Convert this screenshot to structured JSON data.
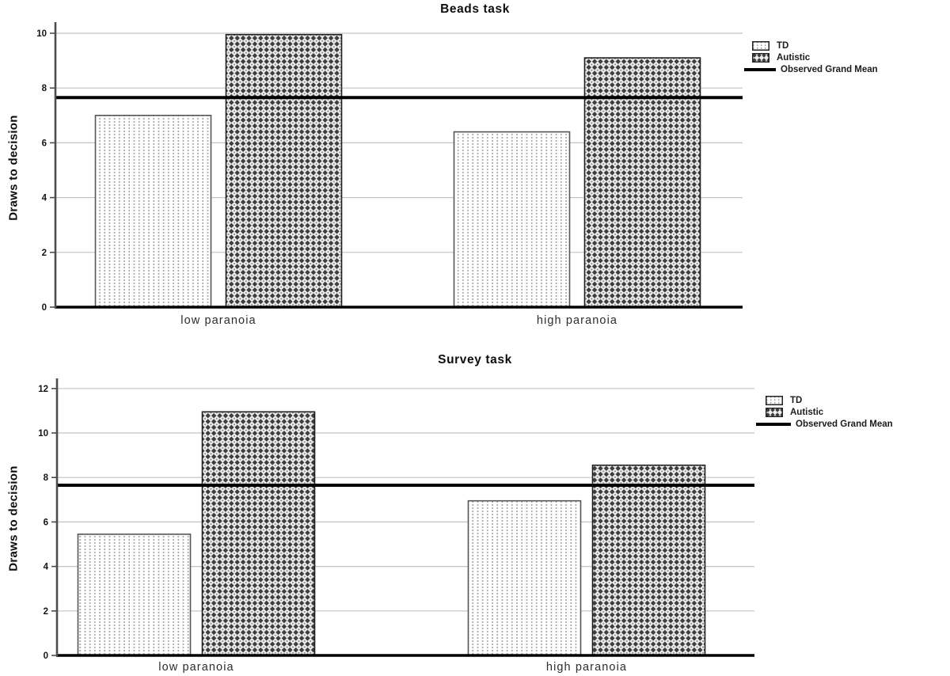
{
  "figure": {
    "background": "#ffffff",
    "text_color": "#000000",
    "gridline_color": "#c2c2c2"
  },
  "chart_data": [
    {
      "type": "bar",
      "title": "Beads task",
      "ylabel": "Draws to decision",
      "xlabel": "",
      "categories": [
        "low paranoia",
        "high paranoia"
      ],
      "series": [
        {
          "name": "TD",
          "pattern": "vertical-dots",
          "values": [
            7.0,
            6.4
          ]
        },
        {
          "name": "Autistic",
          "pattern": "diamond-check",
          "values": [
            9.95,
            9.1
          ]
        }
      ],
      "grand_mean": 7.65,
      "grand_mean_label": "Observed Grand Mean",
      "grand_mean_color": "#000000",
      "yticks": [
        0,
        2,
        4,
        6,
        8,
        10
      ],
      "ylim": [
        0,
        10.4
      ],
      "grid": true,
      "legend_position": "top-right"
    },
    {
      "type": "bar",
      "title": "Survey task",
      "ylabel": "Draws to decision",
      "xlabel": "",
      "categories": [
        "low paranoia",
        "high paranoia"
      ],
      "series": [
        {
          "name": "TD",
          "pattern": "vertical-dots",
          "values": [
            5.45,
            6.95
          ]
        },
        {
          "name": "Autistic",
          "pattern": "diamond-check",
          "values": [
            10.95,
            8.55
          ]
        }
      ],
      "grand_mean": 7.65,
      "grand_mean_label": "Observed Grand Mean",
      "grand_mean_color": "#000000",
      "yticks": [
        0,
        2,
        4,
        6,
        8,
        10,
        12
      ],
      "ylim": [
        0,
        12.5
      ],
      "grid": true,
      "legend_position": "top-right"
    }
  ]
}
